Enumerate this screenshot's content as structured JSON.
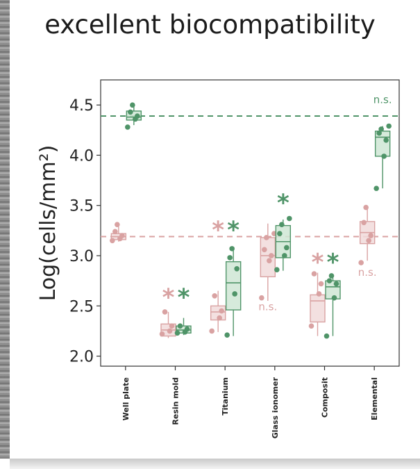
{
  "heading": "excellent biocompatibility",
  "chart_data": {
    "type": "box",
    "ylabel": "Log(cells/mm²)",
    "ylim": [
      1.9,
      4.75
    ],
    "yticks": [
      2.0,
      2.5,
      3.0,
      3.5,
      4.0,
      4.5
    ],
    "categories": [
      "Well plate",
      "Resin mold",
      "Titanium",
      "Glass ionomer",
      "Composit",
      "Elemental"
    ],
    "grid": false,
    "colors": {
      "pink": "#d9a2a2",
      "green": "#4f9468",
      "pink_fill": "#f1dada",
      "green_fill": "#cfe6d5"
    },
    "reference_lines": [
      {
        "series": "green",
        "y": 4.39
      },
      {
        "series": "pink",
        "y": 3.19
      }
    ],
    "series": [
      {
        "color_key": "pink",
        "boxes": [
          {
            "q1": 3.16,
            "median": 3.19,
            "q3": 3.22,
            "whisker_low": 3.14,
            "whisker_high": 3.3,
            "points": [
              3.15,
              3.17,
              3.2,
              3.24,
              3.31
            ]
          },
          {
            "q1": 2.2,
            "median": 2.26,
            "q3": 2.32,
            "whisker_low": 2.18,
            "whisker_high": 2.44,
            "points": [
              2.22,
              2.25,
              2.3,
              2.44
            ]
          },
          {
            "q1": 2.36,
            "median": 2.44,
            "q3": 2.5,
            "whisker_low": 2.24,
            "whisker_high": 2.65,
            "points": [
              2.25,
              2.38,
              2.45,
              2.6
            ]
          },
          {
            "q1": 2.79,
            "median": 3.0,
            "q3": 3.18,
            "whisker_low": 2.55,
            "whisker_high": 3.32,
            "points": [
              2.58,
              2.95,
              3.0,
              3.06,
              3.18,
              3.22
            ]
          },
          {
            "q1": 2.34,
            "median": 2.55,
            "q3": 2.61,
            "whisker_low": 2.2,
            "whisker_high": 2.83,
            "points": [
              2.3,
              2.62,
              2.72,
              2.82
            ]
          },
          {
            "q1": 3.12,
            "median": 3.23,
            "q3": 3.34,
            "whisker_low": 2.95,
            "whisker_high": 3.5,
            "points": [
              2.93,
              3.15,
              3.2,
              3.33,
              3.48
            ]
          }
        ]
      },
      {
        "color_key": "green",
        "boxes": [
          {
            "q1": 4.35,
            "median": 4.38,
            "q3": 4.44,
            "whisker_low": 4.3,
            "whisker_high": 4.5,
            "points": [
              4.28,
              4.36,
              4.39,
              4.43,
              4.5
            ]
          },
          {
            "q1": 2.23,
            "median": 2.26,
            "q3": 2.3,
            "whisker_low": 2.21,
            "whisker_high": 2.38,
            "points": [
              2.23,
              2.24,
              2.27,
              2.3
            ]
          },
          {
            "q1": 2.46,
            "median": 2.73,
            "q3": 2.94,
            "whisker_low": 2.2,
            "whisker_high": 3.06,
            "points": [
              2.21,
              2.62,
              2.87,
              2.98,
              3.07
            ]
          },
          {
            "q1": 2.98,
            "median": 3.14,
            "q3": 3.3,
            "whisker_low": 2.85,
            "whisker_high": 3.36,
            "points": [
              2.86,
              3.0,
              3.08,
              3.22,
              3.31,
              3.37
            ]
          },
          {
            "q1": 2.57,
            "median": 2.69,
            "q3": 2.75,
            "whisker_low": 2.2,
            "whisker_high": 2.78,
            "points": [
              2.2,
              2.58,
              2.72,
              2.75,
              2.8
            ]
          },
          {
            "q1": 3.99,
            "median": 4.18,
            "q3": 4.24,
            "whisker_low": 3.67,
            "whisker_high": 4.29,
            "points": [
              3.67,
              3.99,
              4.15,
              4.22,
              4.26,
              4.29
            ]
          }
        ]
      }
    ],
    "annotations": [
      {
        "text": "*",
        "category": 1,
        "series": "pink",
        "y": 2.63
      },
      {
        "text": "*",
        "category": 1,
        "series": "green",
        "y": 2.63
      },
      {
        "text": "*",
        "category": 2,
        "series": "pink",
        "y": 3.3
      },
      {
        "text": "*",
        "category": 2,
        "series": "green",
        "y": 3.3
      },
      {
        "text": "*",
        "category": 3,
        "series": "green",
        "y": 3.57
      },
      {
        "text": "n.s.",
        "category": 3,
        "series": "pink",
        "y": 2.5
      },
      {
        "text": "*",
        "category": 4,
        "series": "pink",
        "y": 2.98
      },
      {
        "text": "*",
        "category": 4,
        "series": "green",
        "y": 2.98
      },
      {
        "text": "n.s.",
        "category": 5,
        "series": "pink",
        "y": 2.84
      },
      {
        "text": "n.s.",
        "category": 5,
        "series": "green",
        "y": 4.56
      }
    ]
  }
}
